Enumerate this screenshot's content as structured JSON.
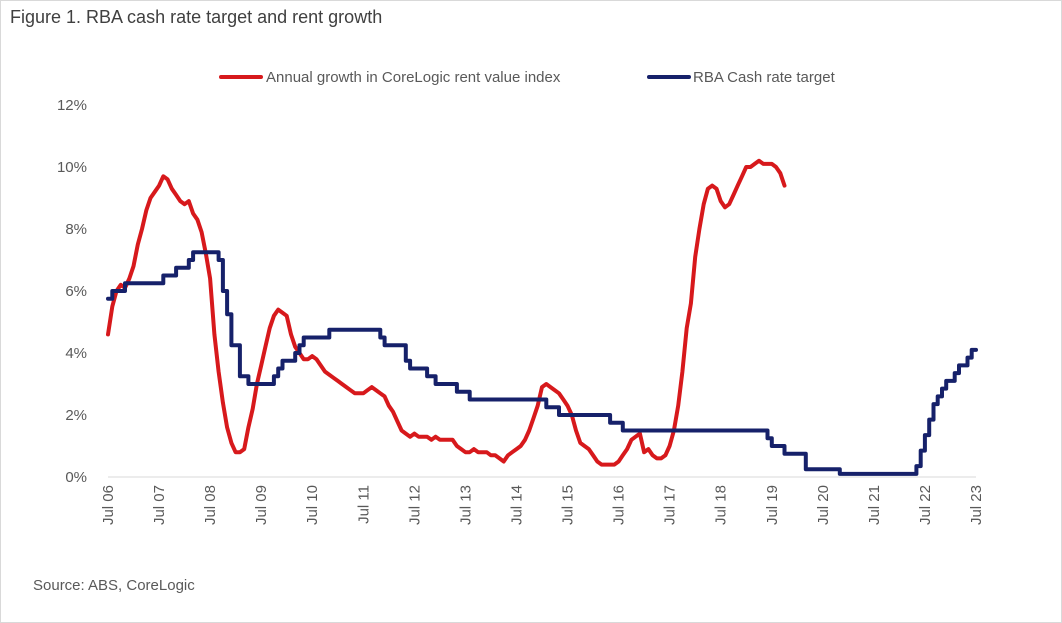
{
  "title": "Figure 1. RBA cash rate target and rent growth",
  "source": "Source: ABS, CoreLogic",
  "chart_data": {
    "type": "line",
    "title": "Figure 1. RBA cash rate target and rent growth",
    "xlabel": "",
    "ylabel": "",
    "x_range": [
      "2006-07",
      "2023-07"
    ],
    "ylim": [
      0,
      12
    ],
    "y_ticks": [
      0,
      2,
      4,
      6,
      8,
      10,
      12
    ],
    "y_tick_labels": [
      "0%",
      "2%",
      "4%",
      "6%",
      "8%",
      "10%",
      "12%"
    ],
    "x_tick_labels": [
      "Jul 06",
      "Jul 07",
      "Jul 08",
      "Jul 09",
      "Jul 10",
      "Jul 11",
      "Jul 12",
      "Jul 13",
      "Jul 14",
      "Jul 15",
      "Jul 16",
      "Jul 17",
      "Jul 18",
      "Jul 19",
      "Jul 20",
      "Jul 21",
      "Jul 22",
      "Jul 23"
    ],
    "grid": false,
    "legend_position": "top-center",
    "series": [
      {
        "name": "Annual growth in CoreLogic rent value index",
        "color": "#d7191c",
        "points": [
          [
            "2006-07",
            4.6
          ],
          [
            "2006-08",
            5.5
          ],
          [
            "2006-09",
            6.0
          ],
          [
            "2006-10",
            6.2
          ],
          [
            "2006-11",
            6.1
          ],
          [
            "2006-12",
            6.4
          ],
          [
            "2007-01",
            6.8
          ],
          [
            "2007-02",
            7.5
          ],
          [
            "2007-03",
            8.0
          ],
          [
            "2007-04",
            8.6
          ],
          [
            "2007-05",
            9.0
          ],
          [
            "2007-06",
            9.2
          ],
          [
            "2007-07",
            9.4
          ],
          [
            "2007-08",
            9.7
          ],
          [
            "2007-09",
            9.6
          ],
          [
            "2007-10",
            9.3
          ],
          [
            "2007-11",
            9.1
          ],
          [
            "2007-12",
            8.9
          ],
          [
            "2008-01",
            8.8
          ],
          [
            "2008-02",
            8.9
          ],
          [
            "2008-03",
            8.5
          ],
          [
            "2008-04",
            8.3
          ],
          [
            "2008-05",
            7.9
          ],
          [
            "2008-06",
            7.2
          ],
          [
            "2008-07",
            6.4
          ],
          [
            "2008-08",
            4.6
          ],
          [
            "2008-09",
            3.4
          ],
          [
            "2008-10",
            2.4
          ],
          [
            "2008-11",
            1.6
          ],
          [
            "2008-12",
            1.1
          ],
          [
            "2009-01",
            0.8
          ],
          [
            "2009-02",
            0.8
          ],
          [
            "2009-03",
            0.9
          ],
          [
            "2009-04",
            1.6
          ],
          [
            "2009-05",
            2.2
          ],
          [
            "2009-06",
            3.0
          ],
          [
            "2009-07",
            3.6
          ],
          [
            "2009-08",
            4.2
          ],
          [
            "2009-09",
            4.8
          ],
          [
            "2009-10",
            5.2
          ],
          [
            "2009-11",
            5.4
          ],
          [
            "2009-12",
            5.3
          ],
          [
            "2010-01",
            5.2
          ],
          [
            "2010-02",
            4.6
          ],
          [
            "2010-03",
            4.2
          ],
          [
            "2010-04",
            4.0
          ],
          [
            "2010-05",
            3.8
          ],
          [
            "2010-06",
            3.8
          ],
          [
            "2010-07",
            3.9
          ],
          [
            "2010-08",
            3.8
          ],
          [
            "2010-09",
            3.6
          ],
          [
            "2010-10",
            3.4
          ],
          [
            "2010-11",
            3.3
          ],
          [
            "2010-12",
            3.2
          ],
          [
            "2011-01",
            3.1
          ],
          [
            "2011-02",
            3.0
          ],
          [
            "2011-03",
            2.9
          ],
          [
            "2011-04",
            2.8
          ],
          [
            "2011-05",
            2.7
          ],
          [
            "2011-06",
            2.7
          ],
          [
            "2011-07",
            2.7
          ],
          [
            "2011-08",
            2.8
          ],
          [
            "2011-09",
            2.9
          ],
          [
            "2011-10",
            2.8
          ],
          [
            "2011-11",
            2.7
          ],
          [
            "2011-12",
            2.6
          ],
          [
            "2012-01",
            2.3
          ],
          [
            "2012-02",
            2.1
          ],
          [
            "2012-03",
            1.8
          ],
          [
            "2012-04",
            1.5
          ],
          [
            "2012-05",
            1.4
          ],
          [
            "2012-06",
            1.3
          ],
          [
            "2012-07",
            1.4
          ],
          [
            "2012-08",
            1.3
          ],
          [
            "2012-09",
            1.3
          ],
          [
            "2012-10",
            1.3
          ],
          [
            "2012-11",
            1.2
          ],
          [
            "2012-12",
            1.3
          ],
          [
            "2013-01",
            1.2
          ],
          [
            "2013-02",
            1.2
          ],
          [
            "2013-03",
            1.2
          ],
          [
            "2013-04",
            1.2
          ],
          [
            "2013-05",
            1.0
          ],
          [
            "2013-06",
            0.9
          ],
          [
            "2013-07",
            0.8
          ],
          [
            "2013-08",
            0.8
          ],
          [
            "2013-09",
            0.9
          ],
          [
            "2013-10",
            0.8
          ],
          [
            "2013-11",
            0.8
          ],
          [
            "2013-12",
            0.8
          ],
          [
            "2014-01",
            0.7
          ],
          [
            "2014-02",
            0.7
          ],
          [
            "2014-03",
            0.6
          ],
          [
            "2014-04",
            0.5
          ],
          [
            "2014-05",
            0.7
          ],
          [
            "2014-06",
            0.8
          ],
          [
            "2014-07",
            0.9
          ],
          [
            "2014-08",
            1.0
          ],
          [
            "2014-09",
            1.2
          ],
          [
            "2014-10",
            1.5
          ],
          [
            "2014-11",
            1.9
          ],
          [
            "2014-12",
            2.3
          ],
          [
            "2015-01",
            2.9
          ],
          [
            "2015-02",
            3.0
          ],
          [
            "2015-03",
            2.9
          ],
          [
            "2015-04",
            2.8
          ],
          [
            "2015-05",
            2.7
          ],
          [
            "2015-06",
            2.5
          ],
          [
            "2015-07",
            2.3
          ],
          [
            "2015-08",
            2.0
          ],
          [
            "2015-09",
            1.5
          ],
          [
            "2015-10",
            1.1
          ],
          [
            "2015-11",
            1.0
          ],
          [
            "2015-12",
            0.9
          ],
          [
            "2016-01",
            0.7
          ],
          [
            "2016-02",
            0.5
          ],
          [
            "2016-03",
            0.4
          ],
          [
            "2016-04",
            0.4
          ],
          [
            "2016-05",
            0.4
          ],
          [
            "2016-06",
            0.4
          ],
          [
            "2016-07",
            0.5
          ],
          [
            "2016-08",
            0.7
          ],
          [
            "2016-09",
            0.9
          ],
          [
            "2016-10",
            1.2
          ],
          [
            "2016-11",
            1.3
          ],
          [
            "2016-12",
            1.4
          ],
          [
            "2017-01",
            0.8
          ],
          [
            "2017-02",
            0.9
          ],
          [
            "2017-03",
            0.7
          ],
          [
            "2017-04",
            0.6
          ],
          [
            "2017-05",
            0.6
          ],
          [
            "2017-06",
            0.7
          ],
          [
            "2017-07",
            1.0
          ],
          [
            "2017-08",
            1.5
          ],
          [
            "2017-09",
            2.3
          ],
          [
            "2017-10",
            3.4
          ],
          [
            "2017-11",
            4.8
          ],
          [
            "2017-12",
            5.6
          ],
          [
            "2018-01",
            7.1
          ],
          [
            "2018-02",
            8.0
          ],
          [
            "2018-03",
            8.8
          ],
          [
            "2018-04",
            9.3
          ],
          [
            "2018-05",
            9.4
          ],
          [
            "2018-06",
            9.3
          ],
          [
            "2018-07",
            8.9
          ],
          [
            "2018-08",
            8.7
          ],
          [
            "2018-09",
            8.8
          ],
          [
            "2018-10",
            9.1
          ],
          [
            "2018-11",
            9.4
          ],
          [
            "2018-12",
            9.7
          ],
          [
            "2019-01",
            10.0
          ],
          [
            "2019-02",
            10.0
          ],
          [
            "2019-03",
            10.1
          ],
          [
            "2019-04",
            10.2
          ],
          [
            "2019-05",
            10.1
          ],
          [
            "2019-06",
            10.1
          ],
          [
            "2019-07",
            10.1
          ],
          [
            "2019-08",
            10.0
          ],
          [
            "2019-09",
            9.8
          ],
          [
            "2019-10",
            9.4
          ]
        ]
      },
      {
        "name": "RBA Cash rate target",
        "color": "#16216a",
        "points": [
          [
            "2006-07",
            5.75
          ],
          [
            "2006-08",
            6.0
          ],
          [
            "2006-11",
            6.25
          ],
          [
            "2007-08",
            6.5
          ],
          [
            "2007-11",
            6.75
          ],
          [
            "2008-02",
            7.0
          ],
          [
            "2008-03",
            7.25
          ],
          [
            "2008-09",
            7.0
          ],
          [
            "2008-10",
            6.0
          ],
          [
            "2008-11",
            5.25
          ],
          [
            "2008-12",
            4.25
          ],
          [
            "2009-02",
            3.25
          ],
          [
            "2009-04",
            3.0
          ],
          [
            "2009-10",
            3.25
          ],
          [
            "2009-11",
            3.5
          ],
          [
            "2009-12",
            3.75
          ],
          [
            "2010-03",
            4.0
          ],
          [
            "2010-04",
            4.25
          ],
          [
            "2010-05",
            4.5
          ],
          [
            "2010-11",
            4.75
          ],
          [
            "2011-11",
            4.5
          ],
          [
            "2011-12",
            4.25
          ],
          [
            "2012-05",
            3.75
          ],
          [
            "2012-06",
            3.5
          ],
          [
            "2012-10",
            3.25
          ],
          [
            "2012-12",
            3.0
          ],
          [
            "2013-05",
            2.75
          ],
          [
            "2013-08",
            2.5
          ],
          [
            "2015-02",
            2.25
          ],
          [
            "2015-05",
            2.0
          ],
          [
            "2016-05",
            1.75
          ],
          [
            "2016-08",
            1.5
          ],
          [
            "2019-06",
            1.25
          ],
          [
            "2019-07",
            1.0
          ],
          [
            "2019-10",
            0.75
          ],
          [
            "2020-03",
            0.5
          ],
          [
            "2020-03",
            0.25
          ],
          [
            "2020-11",
            0.1
          ],
          [
            "2022-05",
            0.35
          ],
          [
            "2022-06",
            0.85
          ],
          [
            "2022-07",
            1.35
          ],
          [
            "2022-08",
            1.85
          ],
          [
            "2022-09",
            2.35
          ],
          [
            "2022-10",
            2.6
          ],
          [
            "2022-11",
            2.85
          ],
          [
            "2022-12",
            3.1
          ],
          [
            "2023-02",
            3.35
          ],
          [
            "2023-03",
            3.6
          ],
          [
            "2023-05",
            3.85
          ],
          [
            "2023-06",
            4.1
          ],
          [
            "2023-07",
            4.1
          ]
        ]
      }
    ]
  }
}
